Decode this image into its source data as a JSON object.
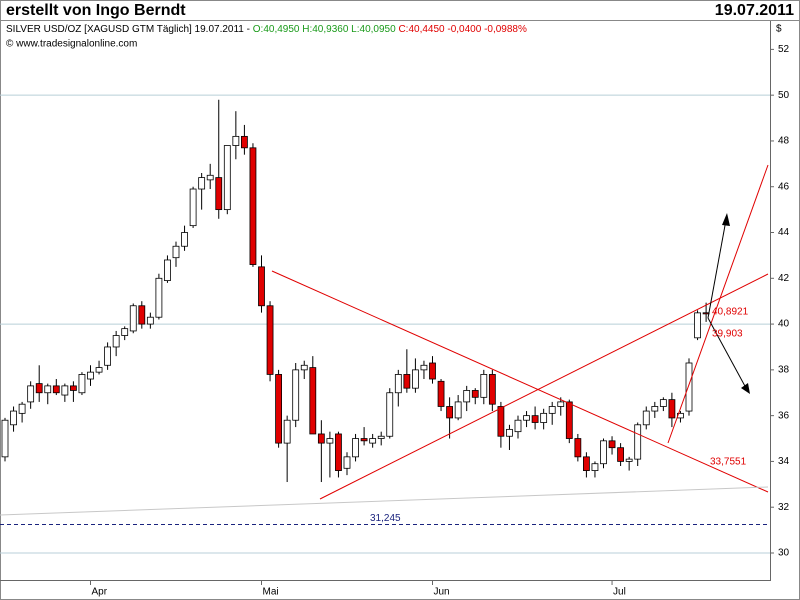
{
  "chart_data": {
    "type": "candlestick",
    "author": "erstellt von Ingo Berndt",
    "date": "19.07.2011",
    "instrument": "SILVER USD/OZ [XAGUSD GTM  Täglich] 19.07.2011 -",
    "quote_range": "O:40,4950 H:40,9360 L:40,0950",
    "quote_change": "C:40,4450 -0,0400 -0,0988%",
    "source": "© www.tradesignalonline.com",
    "unit": "$",
    "categories": [
      null,
      null,
      null,
      null,
      null,
      null,
      null,
      null,
      null,
      null,
      "Apr",
      null,
      null,
      null,
      null,
      null,
      null,
      null,
      null,
      null,
      null,
      null,
      null,
      null,
      null,
      null,
      null,
      null,
      null,
      null,
      "Mai",
      null,
      null,
      null,
      null,
      null,
      null,
      null,
      null,
      null,
      null,
      null,
      null,
      null,
      null,
      null,
      null,
      null,
      null,
      null,
      "Jun",
      null,
      null,
      null,
      null,
      null,
      null,
      null,
      null,
      null,
      null,
      null,
      null,
      null,
      null,
      null,
      null,
      null,
      null,
      null,
      null,
      "Jul",
      null,
      null,
      null,
      null,
      null,
      null,
      null,
      null,
      null,
      null,
      null
    ],
    "open": [
      34.2,
      35.6,
      36.1,
      36.6,
      37.4,
      37.0,
      37.3,
      36.9,
      37.3,
      37.0,
      37.6,
      37.9,
      38.2,
      39.0,
      39.5,
      39.7,
      40.8,
      40.0,
      40.3,
      41.9,
      42.9,
      43.4,
      44.3,
      45.9,
      46.3,
      46.4,
      45.0,
      47.8,
      48.2,
      47.7,
      42.5,
      40.8,
      37.8,
      34.8,
      35.8,
      38.0,
      38.1,
      35.2,
      34.8,
      35.2,
      33.7,
      34.2,
      35.0,
      34.8,
      35.0,
      35.1,
      37.0,
      37.8,
      37.2,
      38.0,
      38.3,
      37.5,
      36.4,
      35.9,
      36.6,
      37.1,
      36.8,
      37.8,
      36.4,
      35.1,
      35.3,
      35.8,
      36.0,
      35.7,
      36.1,
      36.4,
      36.6,
      35.0,
      34.2,
      33.6,
      33.9,
      34.9,
      34.6,
      34.0,
      34.1,
      35.6,
      36.2,
      36.4,
      36.7,
      35.9,
      36.2,
      39.4,
      40.495
    ],
    "high": [
      35.9,
      36.4,
      36.6,
      37.5,
      38.2,
      37.4,
      37.6,
      37.4,
      37.5,
      37.9,
      38.2,
      38.4,
      39.2,
      39.7,
      39.9,
      40.9,
      41.0,
      40.5,
      42.2,
      43.0,
      43.6,
      44.3,
      46.0,
      46.6,
      47.0,
      49.8,
      47.8,
      49.3,
      48.7,
      47.9,
      43.0,
      41.0,
      38.0,
      36.0,
      38.3,
      38.4,
      38.6,
      35.8,
      35.3,
      35.3,
      34.4,
      35.2,
      35.5,
      35.2,
      35.3,
      37.2,
      38.0,
      38.9,
      38.5,
      38.4,
      38.6,
      37.6,
      36.8,
      36.9,
      37.3,
      37.2,
      38.0,
      38.0,
      36.6,
      35.6,
      36.0,
      36.2,
      36.4,
      36.3,
      36.6,
      36.8,
      36.7,
      35.2,
      34.4,
      34.0,
      35.0,
      35.1,
      34.8,
      34.2,
      35.7,
      36.4,
      36.6,
      36.8,
      37.0,
      36.2,
      38.5,
      40.6,
      40.936
    ],
    "low": [
      34.0,
      35.3,
      35.7,
      36.3,
      36.6,
      36.5,
      36.9,
      36.6,
      36.6,
      36.9,
      37.3,
      37.8,
      38.0,
      38.6,
      39.3,
      39.6,
      39.8,
      39.8,
      40.2,
      41.8,
      42.5,
      43.2,
      44.2,
      45.0,
      45.9,
      44.6,
      44.8,
      47.2,
      47.4,
      42.5,
      40.5,
      37.5,
      34.6,
      33.1,
      35.5,
      37.6,
      35.2,
      33.1,
      33.3,
      33.3,
      33.4,
      34.0,
      34.7,
      34.6,
      34.7,
      35.0,
      36.4,
      37.0,
      37.0,
      37.6,
      37.4,
      36.2,
      35.0,
      35.8,
      36.2,
      36.5,
      36.5,
      36.2,
      34.6,
      34.5,
      35.0,
      35.5,
      35.4,
      35.4,
      35.6,
      36.0,
      34.8,
      34.0,
      33.3,
      33.3,
      33.7,
      34.3,
      33.8,
      33.6,
      33.8,
      35.4,
      35.9,
      36.2,
      35.5,
      35.7,
      36.0,
      39.3,
      40.095
    ],
    "close": [
      35.8,
      36.2,
      36.5,
      37.3,
      37.0,
      37.3,
      37.0,
      37.3,
      37.1,
      37.8,
      37.9,
      38.1,
      39.0,
      39.5,
      39.8,
      40.8,
      40.0,
      40.3,
      42.0,
      42.8,
      43.4,
      44.0,
      45.9,
      46.4,
      46.5,
      45.0,
      47.8,
      48.2,
      47.7,
      42.6,
      40.8,
      37.8,
      34.8,
      35.8,
      38.0,
      38.2,
      35.2,
      34.8,
      35.0,
      33.6,
      34.2,
      35.0,
      34.9,
      35.0,
      35.1,
      37.0,
      37.8,
      37.2,
      38.0,
      38.2,
      37.6,
      36.4,
      35.9,
      36.6,
      37.1,
      36.8,
      37.8,
      36.5,
      35.1,
      35.4,
      35.8,
      36.0,
      35.7,
      36.1,
      36.4,
      36.6,
      35.0,
      34.2,
      33.6,
      33.9,
      34.9,
      34.6,
      34.0,
      34.1,
      35.6,
      36.2,
      36.4,
      36.7,
      35.9,
      36.1,
      38.3,
      40.49,
      40.445
    ],
    "up_color": "#ffffff",
    "down_color": "#e00000",
    "ylim": [
      28.82,
      53.24
    ],
    "yticks": [
      30,
      32,
      34,
      36,
      38,
      40,
      42,
      44,
      46,
      48,
      50,
      52
    ],
    "ygrid": [
      30,
      40,
      50
    ],
    "levels": [
      {
        "value": 31.245,
        "label": "31,245",
        "color": "#1a237e"
      }
    ],
    "annotations": [
      "40,8921",
      "39,903",
      "33,7551"
    ]
  }
}
